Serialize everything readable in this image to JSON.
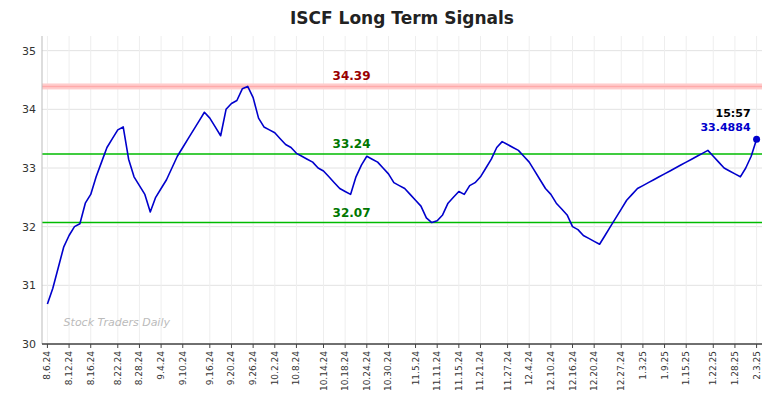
{
  "chart_data": {
    "type": "line",
    "title": "ISCF Long Term Signals",
    "categories": [
      "8.6.24",
      null,
      null,
      null,
      "8.12.24",
      null,
      null,
      null,
      "8.16.24",
      null,
      null,
      null,
      null,
      "8.22.24",
      null,
      null,
      null,
      "8.28.24",
      null,
      null,
      null,
      "9.4.24",
      null,
      null,
      null,
      "9.10.24",
      null,
      null,
      null,
      null,
      "9.16.24",
      null,
      null,
      null,
      "9.20.24",
      null,
      null,
      null,
      "9.26.24",
      null,
      null,
      null,
      "10.2.24",
      null,
      null,
      null,
      "10.8.24",
      null,
      null,
      null,
      null,
      "10.14.24",
      null,
      null,
      null,
      "10.18.24",
      null,
      null,
      null,
      "10.24.24",
      null,
      null,
      null,
      "10.30.24",
      null,
      null,
      null,
      null,
      "11.5.24",
      null,
      null,
      null,
      "11.11.24",
      null,
      null,
      null,
      "11.15.24",
      null,
      null,
      null,
      "11.21.24",
      null,
      null,
      null,
      null,
      "11.27.24",
      null,
      null,
      null,
      "12.4.24",
      null,
      null,
      null,
      "12.10.24",
      null,
      null,
      null,
      "12.16.24",
      null,
      null,
      null,
      "12.20.24",
      null,
      null,
      null,
      null,
      "12.27.24",
      null,
      null,
      null,
      "1.3.25",
      null,
      null,
      null,
      "1.9.25",
      null,
      null,
      null,
      "1.15.25",
      null,
      null,
      null,
      null,
      "1.22.25",
      null,
      null,
      null,
      "1.28.25",
      null,
      null,
      null,
      "2.3.25"
    ],
    "values": [
      30.68,
      30.95,
      31.3,
      31.65,
      31.85,
      32.0,
      32.05,
      32.4,
      32.55,
      32.85,
      33.1,
      33.35,
      33.5,
      33.65,
      33.7,
      33.15,
      32.85,
      32.7,
      32.55,
      32.25,
      32.5,
      32.65,
      32.8,
      33.0,
      33.2,
      33.35,
      33.5,
      33.65,
      33.8,
      33.95,
      33.85,
      33.7,
      33.55,
      34.0,
      34.1,
      34.15,
      34.35,
      34.39,
      34.2,
      33.85,
      33.7,
      33.65,
      33.6,
      33.5,
      33.4,
      33.35,
      33.25,
      33.2,
      33.15,
      33.1,
      33.0,
      32.95,
      32.85,
      32.75,
      32.65,
      32.6,
      32.55,
      32.85,
      33.05,
      33.2,
      33.15,
      33.1,
      33.0,
      32.9,
      32.75,
      32.7,
      32.65,
      32.55,
      32.45,
      32.35,
      32.15,
      32.07,
      32.1,
      32.2,
      32.4,
      32.5,
      32.6,
      32.55,
      32.7,
      32.75,
      32.85,
      33.0,
      33.15,
      33.35,
      33.45,
      33.4,
      33.35,
      33.3,
      33.2,
      33.1,
      32.95,
      32.8,
      32.65,
      32.55,
      32.4,
      32.3,
      32.2,
      32.0,
      31.95,
      31.85,
      31.8,
      31.75,
      31.7,
      31.85,
      32.0,
      32.15,
      32.3,
      32.45,
      32.55,
      32.65,
      32.7,
      32.75,
      32.8,
      32.85,
      32.9,
      32.95,
      33.0,
      33.05,
      33.1,
      33.15,
      33.2,
      33.25,
      33.3,
      33.2,
      33.1,
      33.0,
      32.95,
      32.9,
      32.85,
      33.0,
      33.2,
      33.4884
    ],
    "color": "#0000cc",
    "ylim": [
      30.0,
      35.25
    ],
    "yticks": [
      30,
      31,
      32,
      33,
      34,
      35
    ],
    "grid": true,
    "reference_lines": [
      {
        "value": 34.39,
        "label": "34.39",
        "color": "#ffaaaa",
        "band_color": "#ffcccc",
        "label_color": "#990000"
      },
      {
        "value": 33.24,
        "label": "33.24",
        "color": "#00bb00",
        "label_color": "#007700"
      },
      {
        "value": 32.07,
        "label": "32.07",
        "color": "#00bb00",
        "label_color": "#007700"
      }
    ],
    "annotations": [
      "15:57",
      "33.4884"
    ],
    "annotation_colors": [
      "#000000",
      "#0000cc"
    ],
    "watermark": "Stock Traders Daily",
    "watermark_color": "#bbbbbb"
  }
}
